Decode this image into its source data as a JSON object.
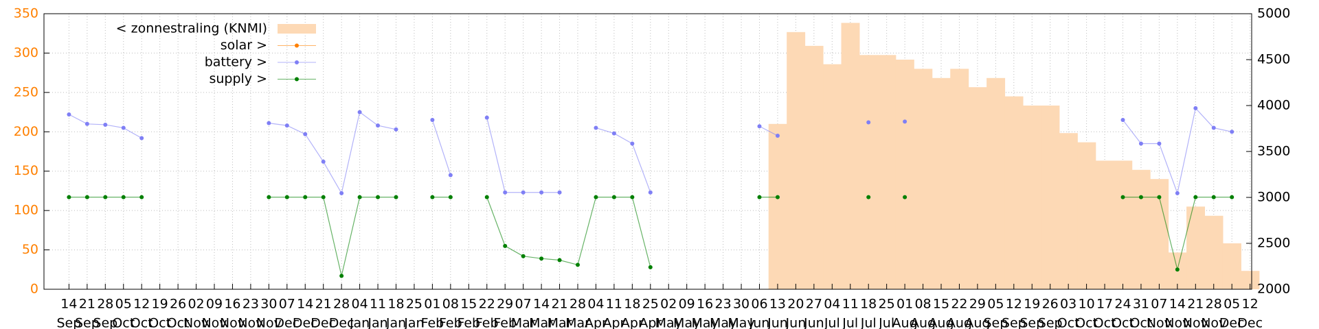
{
  "chart_data": {
    "type": "line",
    "categories": [
      [
        "14",
        "Sep"
      ],
      [
        "21",
        "Sep"
      ],
      [
        "28",
        "Sep"
      ],
      [
        "05",
        "Oct"
      ],
      [
        "12",
        "Oct"
      ],
      [
        "19",
        "Oct"
      ],
      [
        "26",
        "Oct"
      ],
      [
        "02",
        "Nov"
      ],
      [
        "09",
        "Nov"
      ],
      [
        "16",
        "Nov"
      ],
      [
        "23",
        "Nov"
      ],
      [
        "30",
        "Nov"
      ],
      [
        "07",
        "Dec"
      ],
      [
        "14",
        "Dec"
      ],
      [
        "21",
        "Dec"
      ],
      [
        "28",
        "Dec"
      ],
      [
        "04",
        "Jan"
      ],
      [
        "11",
        "Jan"
      ],
      [
        "18",
        "Jan"
      ],
      [
        "25",
        "Jan"
      ],
      [
        "01",
        "Feb"
      ],
      [
        "08",
        "Feb"
      ],
      [
        "15",
        "Feb"
      ],
      [
        "22",
        "Feb"
      ],
      [
        "29",
        "Feb"
      ],
      [
        "07",
        "Mar"
      ],
      [
        "14",
        "Mar"
      ],
      [
        "21",
        "Mar"
      ],
      [
        "28",
        "Mar"
      ],
      [
        "04",
        "Apr"
      ],
      [
        "11",
        "Apr"
      ],
      [
        "18",
        "Apr"
      ],
      [
        "25",
        "Apr"
      ],
      [
        "02",
        "May"
      ],
      [
        "09",
        "May"
      ],
      [
        "16",
        "May"
      ],
      [
        "23",
        "May"
      ],
      [
        "30",
        "May"
      ],
      [
        "06",
        "Jun"
      ],
      [
        "13",
        "Jun"
      ],
      [
        "20",
        "Jun"
      ],
      [
        "27",
        "Jun"
      ],
      [
        "04",
        "Jul"
      ],
      [
        "11",
        "Jul"
      ],
      [
        "18",
        "Jul"
      ],
      [
        "25",
        "Jul"
      ],
      [
        "01",
        "Aug"
      ],
      [
        "08",
        "Aug"
      ],
      [
        "15",
        "Aug"
      ],
      [
        "22",
        "Aug"
      ],
      [
        "29",
        "Aug"
      ],
      [
        "05",
        "Sep"
      ],
      [
        "12",
        "Sep"
      ],
      [
        "19",
        "Sep"
      ],
      [
        "26",
        "Sep"
      ],
      [
        "03",
        "Oct"
      ],
      [
        "10",
        "Oct"
      ],
      [
        "17",
        "Oct"
      ],
      [
        "24",
        "Oct"
      ],
      [
        "31",
        "Oct"
      ],
      [
        "07",
        "Nov"
      ],
      [
        "14",
        "Nov"
      ],
      [
        "21",
        "Nov"
      ],
      [
        "28",
        "Nov"
      ],
      [
        "05",
        "Dec"
      ],
      [
        "12",
        "Dec"
      ]
    ],
    "series": [
      {
        "name": "< zonnestraling (KNMI)",
        "type": "area",
        "axis": "y2",
        "color": "#fdd9b5",
        "values": [
          null,
          null,
          null,
          null,
          null,
          null,
          null,
          null,
          null,
          null,
          null,
          null,
          null,
          null,
          null,
          null,
          null,
          null,
          null,
          null,
          null,
          null,
          null,
          null,
          null,
          null,
          null,
          null,
          null,
          null,
          null,
          null,
          null,
          null,
          null,
          null,
          null,
          null,
          null,
          3800,
          4800,
          4650,
          4450,
          4900,
          4550,
          4550,
          4500,
          4400,
          4300,
          4400,
          4200,
          4300,
          4100,
          4000,
          4000,
          3700,
          3600,
          3400,
          3400,
          3300,
          3200,
          2400,
          2900,
          2800,
          2500,
          2200
        ]
      },
      {
        "name": "solar >",
        "type": "line",
        "color": "#ff8000",
        "values": [
          null,
          null,
          null,
          null,
          null,
          null,
          null,
          null,
          null,
          null,
          null,
          null,
          null,
          null,
          null,
          null,
          null,
          null,
          null,
          null,
          null,
          null,
          null,
          null,
          null,
          null,
          null,
          null,
          null,
          null,
          null,
          null,
          null,
          null,
          null,
          null,
          null,
          null,
          null,
          null,
          null,
          null,
          null,
          null,
          null,
          null,
          null,
          null,
          null,
          null,
          null,
          null,
          null,
          null,
          null,
          null,
          null,
          null,
          null,
          null,
          null,
          null,
          null,
          null,
          null,
          null
        ]
      },
      {
        "name": "battery >",
        "type": "line",
        "color": "#7f7ff5",
        "values": [
          222,
          210,
          209,
          205,
          192,
          null,
          null,
          null,
          null,
          null,
          null,
          211,
          208,
          197,
          162,
          122,
          225,
          208,
          203,
          null,
          215,
          145,
          null,
          218,
          123,
          123,
          123,
          123,
          null,
          205,
          198,
          185,
          123,
          null,
          null,
          null,
          null,
          null,
          207,
          195,
          null,
          null,
          null,
          null,
          212,
          null,
          213,
          null,
          null,
          null,
          null,
          null,
          null,
          null,
          null,
          null,
          null,
          null,
          215,
          185,
          185,
          122,
          230,
          205,
          200,
          null
        ]
      },
      {
        "name": "supply >",
        "type": "line",
        "color": "#008000",
        "values": [
          117,
          117,
          117,
          117,
          117,
          null,
          null,
          null,
          null,
          null,
          null,
          117,
          117,
          117,
          117,
          17,
          117,
          117,
          117,
          null,
          117,
          117,
          null,
          117,
          55,
          42,
          39,
          37,
          31,
          117,
          117,
          117,
          28,
          null,
          null,
          null,
          null,
          null,
          117,
          117,
          null,
          null,
          null,
          null,
          117,
          null,
          117,
          null,
          null,
          null,
          null,
          null,
          null,
          null,
          null,
          null,
          null,
          null,
          117,
          117,
          117,
          25,
          117,
          117,
          117,
          null
        ]
      }
    ],
    "ylim": [
      0,
      350
    ],
    "yticks": [
      0,
      50,
      100,
      150,
      200,
      250,
      300,
      350
    ],
    "y2lim": [
      2000,
      5000
    ],
    "y2ticks": [
      2000,
      2500,
      3000,
      3500,
      4000,
      4500,
      5000
    ],
    "grid": true,
    "legend": "top-left"
  }
}
